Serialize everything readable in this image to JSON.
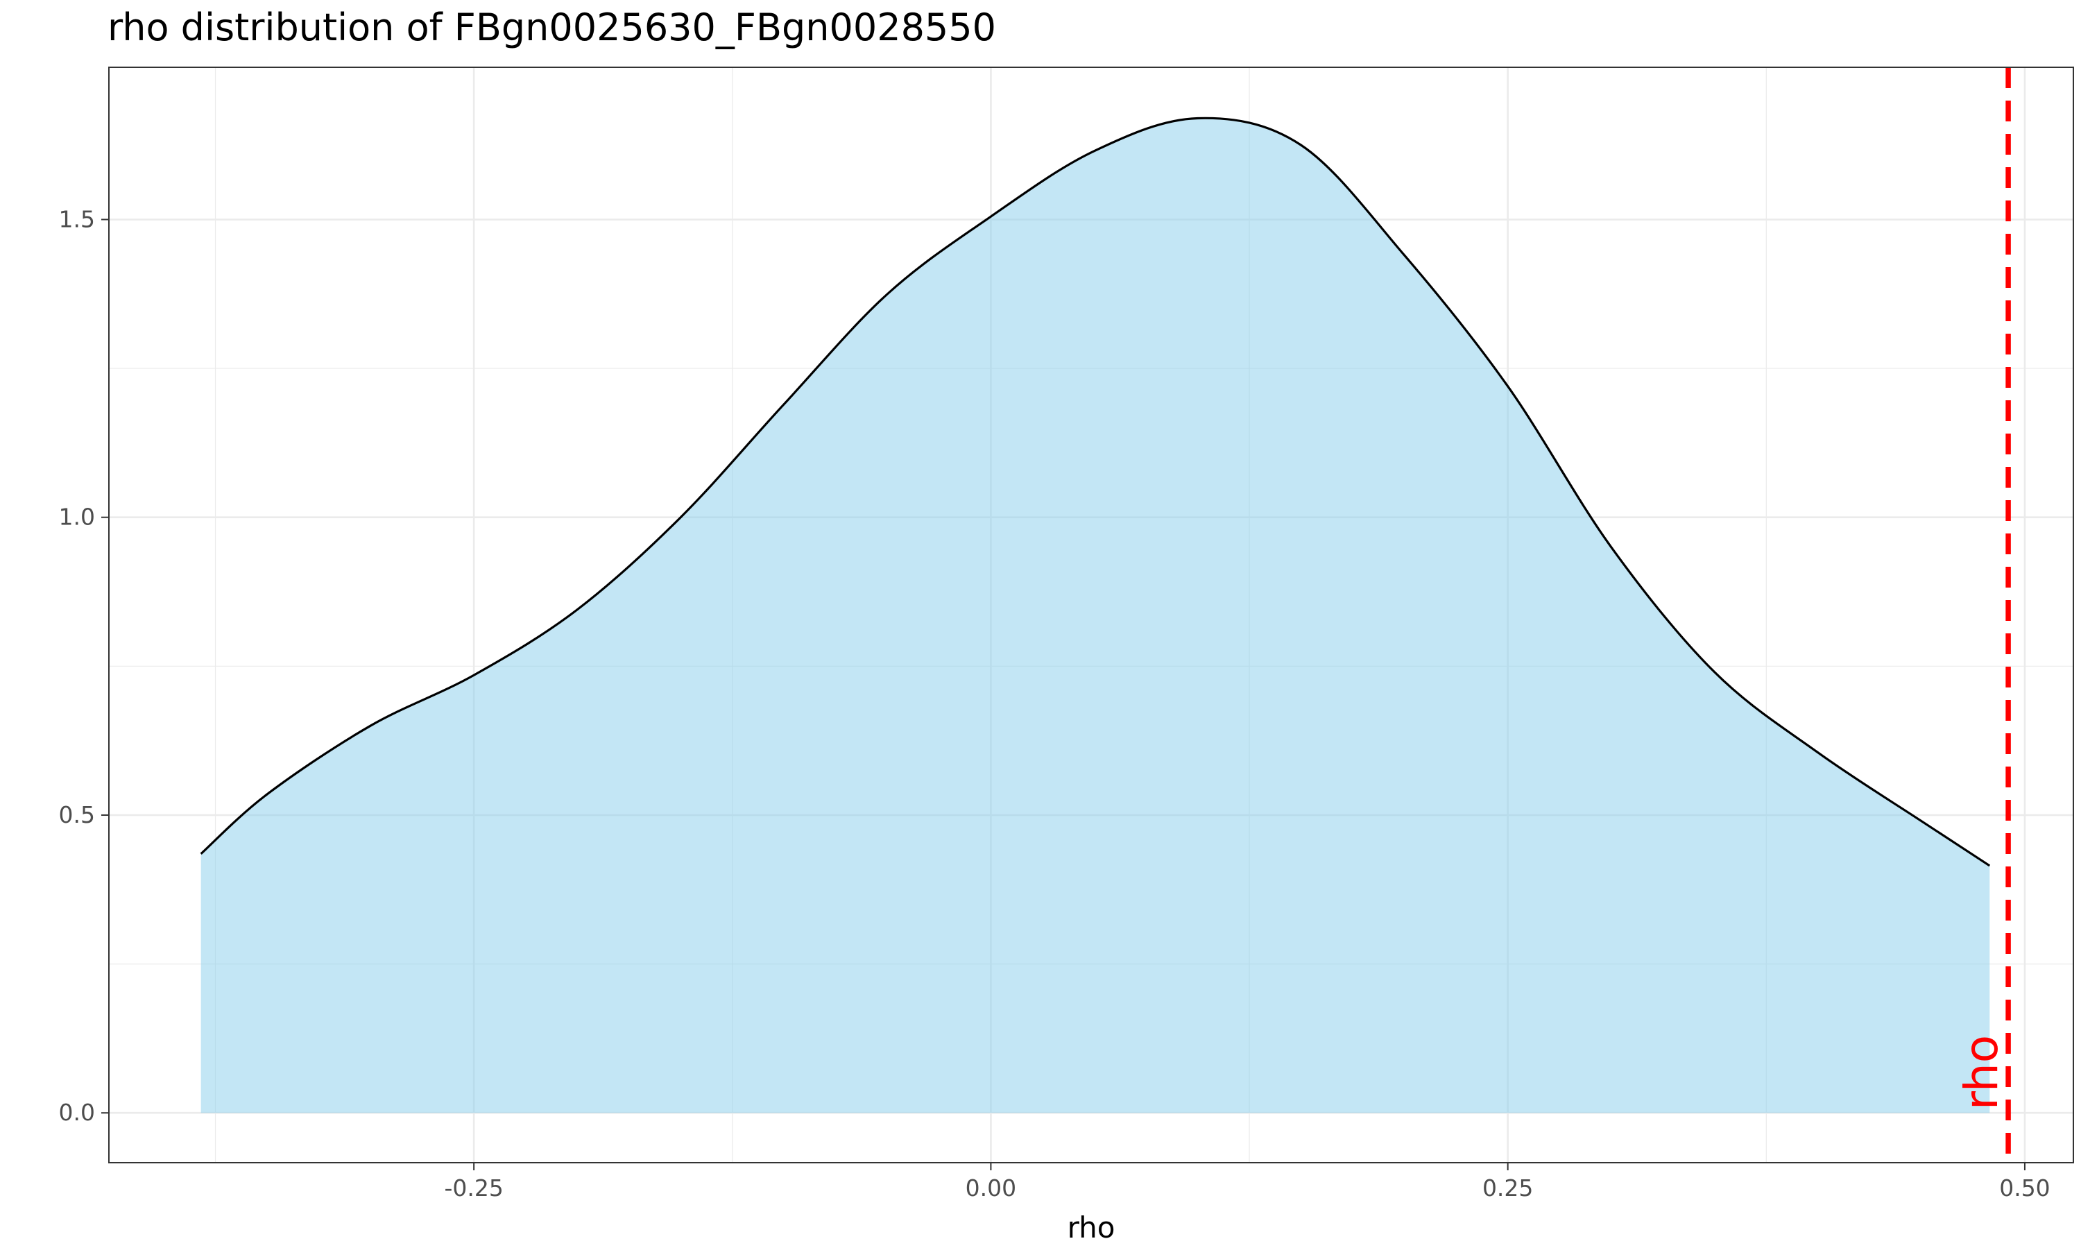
{
  "chart_data": {
    "type": "area",
    "title": "rho distribution of FBgn0025630_FBgn0028550",
    "xlabel": "rho",
    "ylabel": "",
    "xlim": [
      -0.4265,
      0.5235
    ],
    "ylim": [
      -0.0836,
      1.7556
    ],
    "x_ticks": [
      -0.25,
      0.0,
      0.25,
      0.5
    ],
    "x_tick_labels": [
      "-0.25",
      "0.00",
      "0.25",
      "0.50"
    ],
    "x_minor_ticks": [
      -0.375,
      -0.125,
      0.125,
      0.375
    ],
    "y_ticks": [
      0.0,
      0.5,
      1.0,
      1.5
    ],
    "y_tick_labels": [
      "0.0",
      "0.5",
      "1.0",
      "1.5"
    ],
    "y_minor_ticks": [
      0.25,
      0.75,
      1.25
    ],
    "grid": true,
    "fill_color": "#87ceeb",
    "fill_opacity": 0.5,
    "line_color": "#000000",
    "series": [
      {
        "x": [
          -0.382,
          -0.35,
          -0.3,
          -0.25,
          -0.2,
          -0.15,
          -0.1,
          -0.05,
          0.0,
          0.05,
          0.1,
          0.15,
          0.2,
          0.25,
          0.3,
          0.35,
          0.4,
          0.45,
          0.483
        ],
        "values": [
          0.435,
          0.535,
          0.65,
          0.735,
          0.845,
          1.0,
          1.19,
          1.375,
          1.505,
          1.615,
          1.67,
          1.625,
          1.44,
          1.22,
          0.95,
          0.74,
          0.605,
          0.49,
          0.415
        ]
      }
    ],
    "annotations": [
      {
        "type": "vline",
        "x": 0.492,
        "label": "rho",
        "color": "#ff0000",
        "linestyle": "dashed"
      }
    ]
  }
}
